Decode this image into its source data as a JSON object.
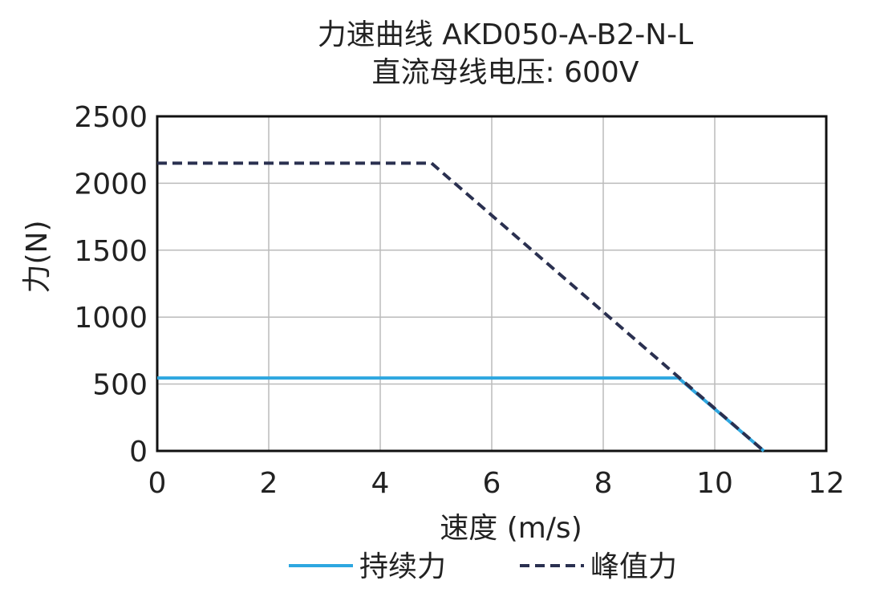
{
  "chart_data": {
    "type": "line",
    "title": [
      "力速曲线 AKD050-A-B2-N-L",
      "直流母线电压: 600V"
    ],
    "x_label": "速度 (m/s)",
    "y_label": "力(N)",
    "xlim": [
      0,
      12
    ],
    "xticks": [
      0,
      2,
      4,
      6,
      8,
      10,
      12
    ],
    "ylim": [
      0,
      2500
    ],
    "yticks": [
      0,
      500,
      1000,
      1500,
      2000,
      2500
    ],
    "grid": true,
    "legend": "bottom",
    "series": [
      {
        "name": "持续力",
        "color": "#2ea7e0",
        "dash": false,
        "x": [
          0,
          9.35,
          10.88
        ],
        "values": [
          545,
          545,
          0
        ]
      },
      {
        "name": "峰值力",
        "color": "#2a3050",
        "dash": true,
        "x": [
          0,
          4.92,
          10.88
        ],
        "values": [
          2150,
          2150,
          0
        ]
      }
    ]
  }
}
